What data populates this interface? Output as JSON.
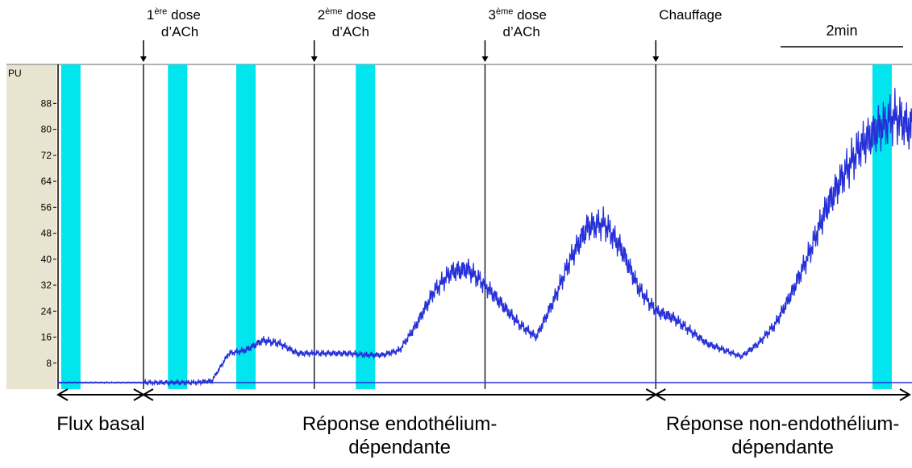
{
  "chart_data": {
    "type": "line",
    "y_unit_label": "PU",
    "ylim": [
      0,
      100
    ],
    "yticks": [
      8,
      16,
      24,
      32,
      40,
      48,
      56,
      64,
      72,
      80,
      88
    ],
    "ytick_labels": [
      "8",
      "16",
      "24",
      "32",
      "40",
      "48",
      "56",
      "64",
      "72",
      "80",
      "88"
    ],
    "series": [
      {
        "x": [
          0,
          2,
          4,
          6,
          8,
          10,
          12,
          14,
          16,
          18,
          20,
          22,
          24,
          26,
          28,
          30,
          32,
          34,
          36,
          38,
          40,
          42,
          44,
          46,
          48,
          50,
          52,
          54,
          56,
          58,
          60,
          62,
          64,
          66,
          68,
          70,
          72,
          74,
          76,
          78,
          80,
          82,
          84,
          86,
          88,
          90,
          92,
          94,
          96,
          98,
          100
        ],
        "values": [
          2,
          2,
          2,
          2,
          2,
          2,
          2,
          2,
          2,
          2.5,
          11,
          12,
          15,
          14,
          11,
          11,
          11,
          11,
          10.5,
          10.5,
          12,
          20,
          30,
          36,
          37,
          32,
          26,
          20,
          16,
          27,
          40,
          50,
          51,
          43,
          31,
          24,
          22,
          18,
          14,
          12,
          10,
          14,
          20,
          30,
          42,
          56,
          66,
          75,
          80,
          84,
          80
        ]
      }
    ],
    "baseline_value": 2,
    "event_markers": [
      {
        "label_top": "1",
        "label_sup": "ère",
        "label_rest": " dose",
        "label_line2": "d’ACh",
        "x": 10
      },
      {
        "label_top": "2",
        "label_sup": "ème",
        "label_rest": " dose",
        "label_line2": "d’ACh",
        "x": 30
      },
      {
        "label_top": "3",
        "label_sup": "ème",
        "label_rest": " dose",
        "label_line2": "d’ACh",
        "x": 50
      },
      {
        "label_top": "Chauffage",
        "label_sup": "",
        "label_rest": "",
        "label_line2": "",
        "x": 70
      }
    ],
    "highlight_bands_x": [
      1.5,
      14,
      22,
      36,
      96.5
    ],
    "scale_bar_label": "2min",
    "phases": [
      {
        "label_line1": "Flux basal",
        "label_line2": "",
        "x_start": 0,
        "x_end": 10
      },
      {
        "label_line1": "Réponse endothélium-",
        "label_line2": "dépendante",
        "x_start": 10,
        "x_end": 70
      },
      {
        "label_line1": "Réponse non-endothélium-",
        "label_line2": "dépendante",
        "x_start": 70,
        "x_end": 100
      }
    ],
    "colors": {
      "trace": "#2630d8",
      "highlight": "#00e5ee",
      "axis_panel": "#e8e4d0",
      "marker_line": "#000000"
    }
  }
}
